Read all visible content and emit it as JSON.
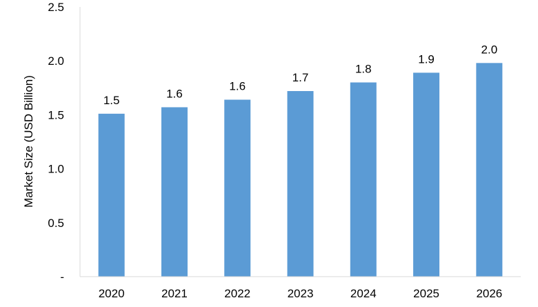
{
  "chart_data": {
    "type": "bar",
    "title": "",
    "xlabel": "",
    "ylabel": "Market Size (USD Billion)",
    "categories": [
      "2020",
      "2021",
      "2022",
      "2023",
      "2024",
      "2025",
      "2026"
    ],
    "values": [
      1.51,
      1.57,
      1.64,
      1.72,
      1.8,
      1.89,
      1.98
    ],
    "data_labels": [
      "1.5",
      "1.6",
      "1.6",
      "1.7",
      "1.8",
      "1.9",
      "2.0"
    ],
    "ylim": [
      0,
      2.5
    ],
    "yticks": [
      {
        "value": 0,
        "label": "-"
      },
      {
        "value": 0.5,
        "label": "0.5"
      },
      {
        "value": 1.0,
        "label": "1.0"
      },
      {
        "value": 1.5,
        "label": "1.5"
      },
      {
        "value": 2.0,
        "label": "2.0"
      },
      {
        "value": 2.5,
        "label": "2.5"
      }
    ],
    "grid": false,
    "legend": "none",
    "bar_color": "#5b9bd5",
    "axis_color": "#d9d9d9"
  }
}
